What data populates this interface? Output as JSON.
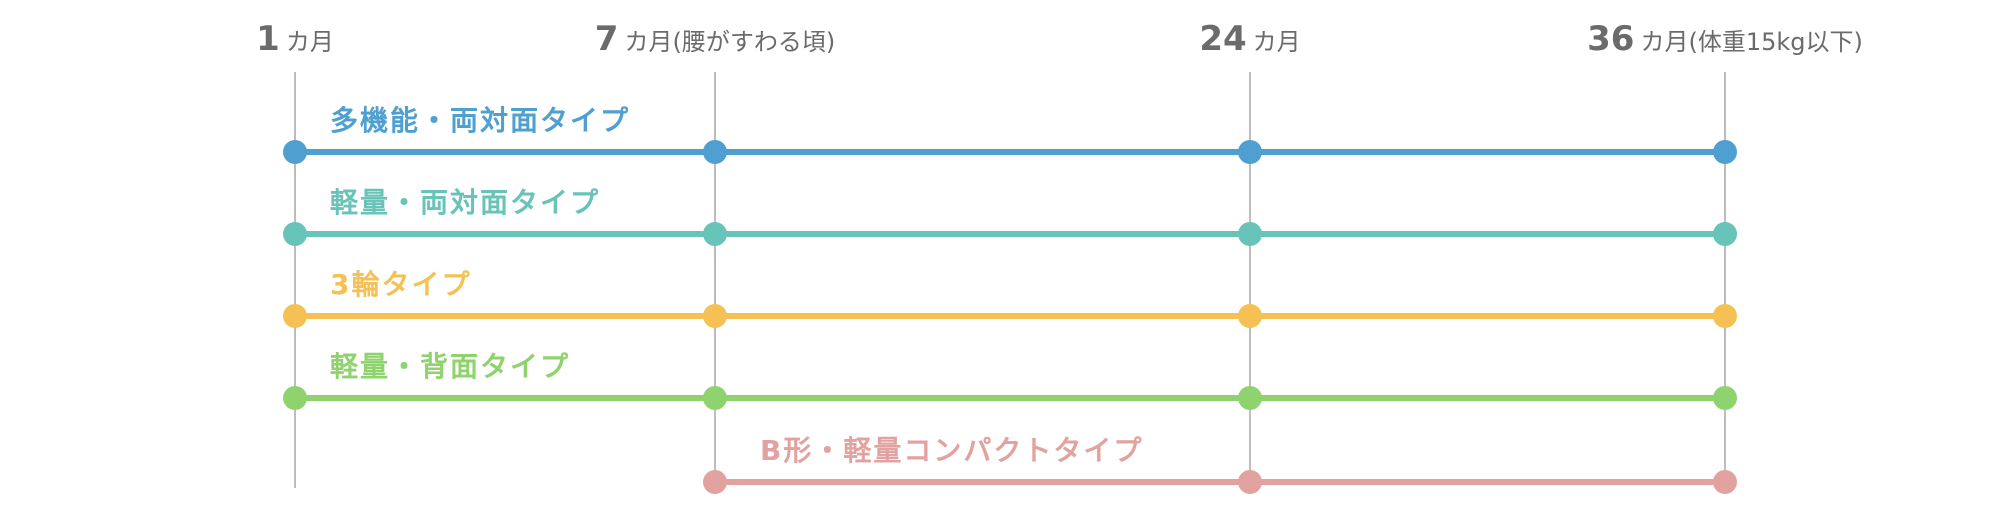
{
  "milestones": [
    {
      "num": "1",
      "text": "カ月"
    },
    {
      "num": "7",
      "text": "カ月(腰がすわる頃)"
    },
    {
      "num": "24",
      "text": "カ月"
    },
    {
      "num": "36",
      "text": "カ月(体重15kg以下)"
    }
  ],
  "rows": [
    {
      "label": "多機能・両対面タイプ",
      "color": "#4f9fd0",
      "start": 0,
      "end": 3
    },
    {
      "label": "軽量・両対面タイプ",
      "color": "#68c3b9",
      "start": 0,
      "end": 3
    },
    {
      "label": "3輪タイプ",
      "color": "#f5c155",
      "start": 0,
      "end": 3
    },
    {
      "label": "軽量・背面タイプ",
      "color": "#8fd36e",
      "start": 0,
      "end": 3
    },
    {
      "label": "B形・軽量コンパクトタイプ",
      "color": "#e2a2a0",
      "start": 1,
      "end": 3
    }
  ],
  "colors": {
    "guide": "#bdbdbd",
    "header_text": "#6b6b6b"
  }
}
